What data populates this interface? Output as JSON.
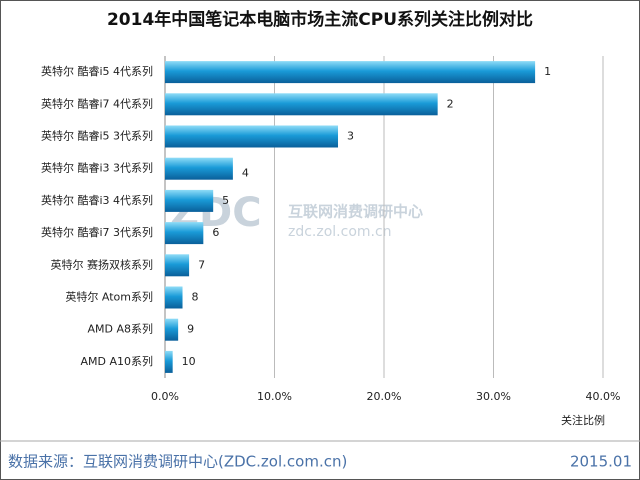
{
  "chart_data": {
    "type": "bar",
    "orientation": "horizontal",
    "title": "2014年中国笔记本电脑市场主流CPU系列关注比例对比",
    "categories": [
      "英特尔 酷睿i5 4代系列",
      "英特尔 酷睿i7 4代系列",
      "英特尔 酷睿i5 3代系列",
      "英特尔 酷睿i3 3代系列",
      "英特尔 酷睿i3 4代系列",
      "英特尔 酷睿i7 3代系列",
      "英特尔 赛扬双核系列",
      "英特尔 Atom系列",
      "AMD A8系列",
      "AMD A10系列"
    ],
    "values": [
      33.8,
      24.9,
      15.8,
      6.2,
      4.4,
      3.5,
      2.2,
      1.6,
      1.2,
      0.7
    ],
    "ranks": [
      1,
      2,
      3,
      4,
      5,
      6,
      7,
      8,
      9,
      10
    ],
    "color": "#1a9bd8",
    "xlim": [
      0,
      40
    ],
    "xticks": [
      {
        "value": 0,
        "label": "0.0%"
      },
      {
        "value": 10,
        "label": "10.0%"
      },
      {
        "value": 20,
        "label": "20.0%"
      },
      {
        "value": 30,
        "label": "30.0%"
      },
      {
        "value": 40,
        "label": "40.0%"
      }
    ],
    "x_label": "关注比例",
    "watermark": {
      "logo": "ZDC",
      "name": "互联网消费调研中心",
      "url": "zdc.zol.com.cn"
    },
    "source": "数据来源：互联网消费调研中心(ZDC.zol.com.cn)",
    "date": "2015.01"
  }
}
